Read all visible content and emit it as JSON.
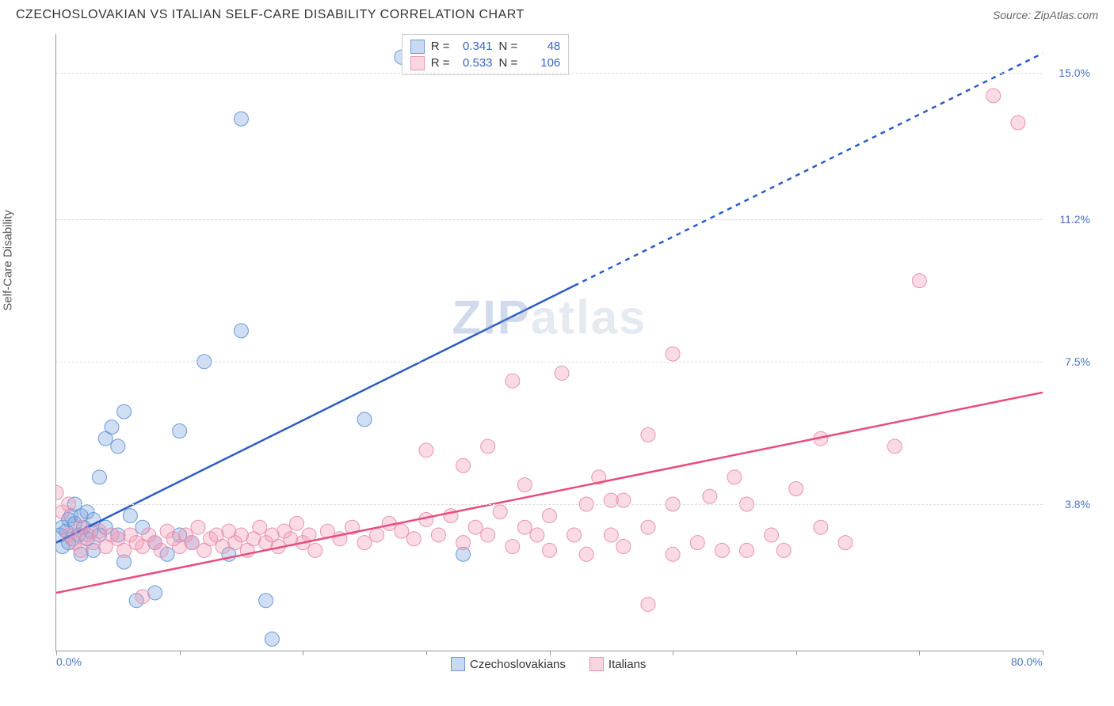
{
  "header": {
    "title": "CZECHOSLOVAKIAN VS ITALIAN SELF-CARE DISABILITY CORRELATION CHART",
    "source_prefix": "Source: ",
    "source_name": "ZipAtlas.com"
  },
  "chart": {
    "type": "scatter",
    "ylabel": "Self-Care Disability",
    "watermark": "ZIPatlas",
    "background_color": "#ffffff",
    "grid_color": "#dddddd",
    "axis_color": "#999999",
    "label_color": "#4a74c9",
    "xlim": [
      0,
      80
    ],
    "ylim": [
      0,
      16
    ],
    "xticks": [
      {
        "pos": 0,
        "label": "0.0%"
      },
      {
        "pos": 10,
        "label": ""
      },
      {
        "pos": 20,
        "label": ""
      },
      {
        "pos": 30,
        "label": ""
      },
      {
        "pos": 40,
        "label": ""
      },
      {
        "pos": 50,
        "label": ""
      },
      {
        "pos": 60,
        "label": ""
      },
      {
        "pos": 70,
        "label": ""
      },
      {
        "pos": 80,
        "label": "80.0%"
      }
    ],
    "yticks": [
      {
        "pos": 3.8,
        "label": "3.8%"
      },
      {
        "pos": 7.5,
        "label": "7.5%"
      },
      {
        "pos": 11.2,
        "label": "11.2%"
      },
      {
        "pos": 15.0,
        "label": "15.0%"
      }
    ],
    "series": [
      {
        "name": "Czechoslovakians",
        "marker_color_fill": "rgba(120,160,220,0.35)",
        "marker_color_stroke": "#6a9bd8",
        "marker_radius": 9,
        "trend_color": "#2c5cc5",
        "trend_width": 2.5,
        "trend": {
          "x1": 0,
          "y1": 2.8,
          "x2": 80,
          "y2": 15.5,
          "solid_until_x": 42
        },
        "R": "0.341",
        "N": "48",
        "legend_swatch_fill": "rgba(120,160,220,0.4)",
        "legend_swatch_border": "#6a9bd8",
        "points": [
          [
            0.3,
            3.0
          ],
          [
            0.5,
            3.2
          ],
          [
            0.5,
            2.7
          ],
          [
            0.8,
            3.1
          ],
          [
            1.0,
            3.4
          ],
          [
            1.0,
            2.8
          ],
          [
            1.2,
            3.5
          ],
          [
            1.3,
            2.9
          ],
          [
            1.5,
            3.3
          ],
          [
            1.5,
            3.8
          ],
          [
            1.8,
            3.0
          ],
          [
            2.0,
            3.5
          ],
          [
            2.0,
            2.5
          ],
          [
            2.2,
            3.2
          ],
          [
            2.5,
            2.9
          ],
          [
            2.5,
            3.6
          ],
          [
            2.8,
            3.1
          ],
          [
            3.0,
            3.4
          ],
          [
            3.0,
            2.6
          ],
          [
            3.5,
            3.0
          ],
          [
            3.5,
            4.5
          ],
          [
            4.0,
            5.5
          ],
          [
            4.0,
            3.2
          ],
          [
            4.5,
            5.8
          ],
          [
            5.0,
            3.0
          ],
          [
            5.0,
            5.3
          ],
          [
            5.5,
            2.3
          ],
          [
            5.5,
            6.2
          ],
          [
            6.0,
            3.5
          ],
          [
            6.5,
            1.3
          ],
          [
            7.0,
            3.2
          ],
          [
            8.0,
            2.8
          ],
          [
            8.0,
            1.5
          ],
          [
            9.0,
            2.5
          ],
          [
            10.0,
            3.0
          ],
          [
            10.0,
            5.7
          ],
          [
            11.0,
            2.8
          ],
          [
            12.0,
            7.5
          ],
          [
            14.0,
            2.5
          ],
          [
            15.0,
            8.3
          ],
          [
            15.0,
            13.8
          ],
          [
            17.0,
            1.3
          ],
          [
            17.5,
            0.3
          ],
          [
            25.0,
            6.0
          ],
          [
            28.0,
            15.4
          ],
          [
            33.0,
            2.5
          ]
        ]
      },
      {
        "name": "Italians",
        "marker_color_fill": "rgba(240,150,180,0.35)",
        "marker_color_stroke": "#e895b0",
        "marker_radius": 9,
        "trend_color": "#e84c7c",
        "trend_width": 2.5,
        "trend": {
          "x1": 0,
          "y1": 1.5,
          "x2": 80,
          "y2": 6.7,
          "solid_until_x": 80
        },
        "R": "0.533",
        "N": "106",
        "legend_swatch_fill": "rgba(240,150,180,0.4)",
        "legend_swatch_border": "#e895b0",
        "points": [
          [
            0.0,
            4.1
          ],
          [
            0.5,
            3.6
          ],
          [
            1.0,
            3.0
          ],
          [
            1.0,
            3.8
          ],
          [
            1.5,
            2.8
          ],
          [
            2.0,
            3.2
          ],
          [
            2.0,
            2.6
          ],
          [
            2.5,
            3.0
          ],
          [
            3.0,
            2.8
          ],
          [
            3.5,
            3.1
          ],
          [
            4.0,
            2.7
          ],
          [
            4.5,
            3.0
          ],
          [
            5.0,
            2.9
          ],
          [
            5.5,
            2.6
          ],
          [
            6.0,
            3.0
          ],
          [
            6.5,
            2.8
          ],
          [
            7.0,
            2.7
          ],
          [
            7.0,
            1.4
          ],
          [
            7.5,
            3.0
          ],
          [
            8.0,
            2.8
          ],
          [
            8.5,
            2.6
          ],
          [
            9.0,
            3.1
          ],
          [
            9.5,
            2.9
          ],
          [
            10.0,
            2.7
          ],
          [
            10.5,
            3.0
          ],
          [
            11.0,
            2.8
          ],
          [
            11.5,
            3.2
          ],
          [
            12.0,
            2.6
          ],
          [
            12.5,
            2.9
          ],
          [
            13.0,
            3.0
          ],
          [
            13.5,
            2.7
          ],
          [
            14.0,
            3.1
          ],
          [
            14.5,
            2.8
          ],
          [
            15.0,
            3.0
          ],
          [
            15.5,
            2.6
          ],
          [
            16.0,
            2.9
          ],
          [
            16.5,
            3.2
          ],
          [
            17.0,
            2.8
          ],
          [
            17.5,
            3.0
          ],
          [
            18.0,
            2.7
          ],
          [
            18.5,
            3.1
          ],
          [
            19.0,
            2.9
          ],
          [
            19.5,
            3.3
          ],
          [
            20.0,
            2.8
          ],
          [
            20.5,
            3.0
          ],
          [
            21.0,
            2.6
          ],
          [
            22.0,
            3.1
          ],
          [
            23.0,
            2.9
          ],
          [
            24.0,
            3.2
          ],
          [
            25.0,
            2.8
          ],
          [
            26.0,
            3.0
          ],
          [
            27.0,
            3.3
          ],
          [
            28.0,
            3.1
          ],
          [
            29.0,
            2.9
          ],
          [
            30.0,
            3.4
          ],
          [
            30.0,
            5.2
          ],
          [
            31.0,
            3.0
          ],
          [
            32.0,
            3.5
          ],
          [
            33.0,
            2.8
          ],
          [
            33.0,
            4.8
          ],
          [
            34.0,
            3.2
          ],
          [
            35.0,
            3.0
          ],
          [
            35.0,
            5.3
          ],
          [
            36.0,
            3.6
          ],
          [
            37.0,
            2.7
          ],
          [
            37.0,
            7.0
          ],
          [
            38.0,
            3.2
          ],
          [
            38.0,
            4.3
          ],
          [
            39.0,
            3.0
          ],
          [
            40.0,
            3.5
          ],
          [
            40.0,
            2.6
          ],
          [
            41.0,
            7.2
          ],
          [
            42.0,
            3.0
          ],
          [
            43.0,
            3.8
          ],
          [
            43.0,
            2.5
          ],
          [
            44.0,
            4.5
          ],
          [
            45.0,
            3.0
          ],
          [
            45.0,
            3.9
          ],
          [
            46.0,
            2.7
          ],
          [
            46.0,
            3.9
          ],
          [
            48.0,
            3.2
          ],
          [
            48.0,
            5.6
          ],
          [
            48.0,
            1.2
          ],
          [
            50.0,
            3.8
          ],
          [
            50.0,
            2.5
          ],
          [
            50.0,
            7.7
          ],
          [
            52.0,
            2.8
          ],
          [
            53.0,
            4.0
          ],
          [
            54.0,
            2.6
          ],
          [
            55.0,
            4.5
          ],
          [
            56.0,
            3.8
          ],
          [
            56.0,
            2.6
          ],
          [
            58.0,
            3.0
          ],
          [
            59.0,
            2.6
          ],
          [
            60.0,
            4.2
          ],
          [
            62.0,
            3.2
          ],
          [
            62.0,
            5.5
          ],
          [
            64.0,
            2.8
          ],
          [
            68.0,
            5.3
          ],
          [
            70.0,
            9.6
          ],
          [
            76.0,
            14.4
          ],
          [
            78.0,
            13.7
          ]
        ]
      }
    ],
    "stats_legend": {
      "r_prefix": "R = ",
      "n_prefix": "N = "
    }
  }
}
